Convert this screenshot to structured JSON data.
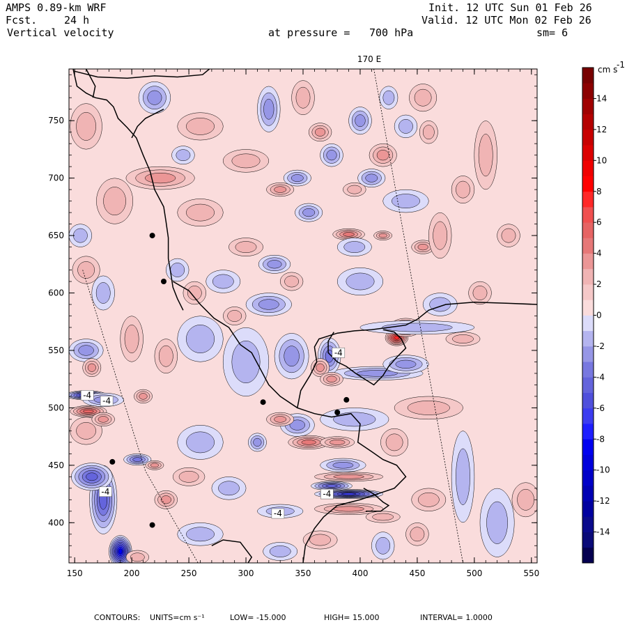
{
  "header": {
    "model": "AMPS 0.89-km WRF",
    "fcst_label": "Fcst.",
    "fcst_value": "24 h",
    "field": "Vertical velocity",
    "init": "Init. 12 UTC Sun 01 Feb 26",
    "valid": "Valid. 12 UTC Mon 02 Feb 26",
    "pressure_label": "at pressure =",
    "pressure_value": "700 hPa",
    "smooth": "sm= 6"
  },
  "footer": {
    "contours_label": "CONTOURS:",
    "units": "UNITS=cm s⁻¹",
    "low": "LOW= -15.000",
    "high": "HIGH= 15.000",
    "interval": "INTERVAL= 1.0000"
  },
  "chart_data": {
    "type": "heatmap",
    "title": "Vertical velocity at pressure = 700 hPa",
    "meridian_label": "170 E",
    "xlim": [
      145,
      555
    ],
    "ylim": [
      365,
      795
    ],
    "x_ticks": [
      "150",
      "200",
      "250",
      "300",
      "350",
      "400",
      "450",
      "500",
      "550"
    ],
    "y_ticks": [
      "400",
      "450",
      "500",
      "550",
      "600",
      "650",
      "700",
      "750"
    ],
    "colorbar": {
      "unit": "cm s",
      "unit_exp": "-1",
      "min": -16,
      "max": 16,
      "ticks": [
        "14",
        "12",
        "10",
        "8",
        "6",
        "4",
        "2",
        "0",
        "-2",
        "-4",
        "-6",
        "-8",
        "-10",
        "-12",
        "-14"
      ],
      "levels": [
        {
          "value": -16,
          "color": "#050050"
        },
        {
          "value": -15,
          "color": "#0a0a78"
        },
        {
          "value": -14,
          "color": "#0a0a8c"
        },
        {
          "value": -13,
          "color": "#0000a0"
        },
        {
          "value": -12,
          "color": "#0000b4"
        },
        {
          "value": -11,
          "color": "#0000c8"
        },
        {
          "value": -10,
          "color": "#0000dc"
        },
        {
          "value": -9,
          "color": "#0000f0"
        },
        {
          "value": -8,
          "color": "#1e1eff"
        },
        {
          "value": -7,
          "color": "#3c3cf0"
        },
        {
          "value": -6,
          "color": "#5050dc"
        },
        {
          "value": -5,
          "color": "#6464dc"
        },
        {
          "value": -4,
          "color": "#7878e0"
        },
        {
          "value": -3,
          "color": "#9696e6"
        },
        {
          "value": -2,
          "color": "#b4b4ef"
        },
        {
          "value": -1,
          "color": "#dcdcfa"
        },
        {
          "value": 0,
          "color": "#fadcdc"
        },
        {
          "value": 1,
          "color": "#f5c8c8"
        },
        {
          "value": 2,
          "color": "#f0b4b4"
        },
        {
          "value": 3,
          "color": "#eb9696"
        },
        {
          "value": 4,
          "color": "#e67878"
        },
        {
          "value": 5,
          "color": "#e66464"
        },
        {
          "value": 6,
          "color": "#f05050"
        },
        {
          "value": 7,
          "color": "#ff2828"
        },
        {
          "value": 8,
          "color": "#ff0000"
        },
        {
          "value": 9,
          "color": "#f00000"
        },
        {
          "value": 10,
          "color": "#dc0000"
        },
        {
          "value": 11,
          "color": "#c80000"
        },
        {
          "value": 12,
          "color": "#b40000"
        },
        {
          "value": 13,
          "color": "#a00000"
        },
        {
          "value": 14,
          "color": "#8c0000"
        },
        {
          "value": 15,
          "color": "#780000"
        }
      ]
    },
    "annotations": [
      {
        "text": "-4",
        "x": 381,
        "y": 548
      },
      {
        "text": "-4",
        "x": 161,
        "y": 511
      },
      {
        "text": "-4",
        "x": 178,
        "y": 506
      },
      {
        "text": "-4",
        "x": 177,
        "y": 427
      },
      {
        "text": "-4",
        "x": 371,
        "y": 425
      },
      {
        "text": "-4",
        "x": 328,
        "y": 408
      }
    ],
    "dots": [
      {
        "x": 218,
        "y": 650
      },
      {
        "x": 228,
        "y": 610
      },
      {
        "x": 315,
        "y": 505
      },
      {
        "x": 388,
        "y": 507
      },
      {
        "x": 380,
        "y": 496
      },
      {
        "x": 183,
        "y": 453
      },
      {
        "x": 218,
        "y": 398
      }
    ],
    "features": [
      {
        "w": 7,
        "x": 432,
        "y": 561,
        "sx": 10,
        "sy": 7
      },
      {
        "w": 5,
        "x": 440,
        "y": 570,
        "sx": 14,
        "sy": 8
      },
      {
        "w": 4,
        "x": 390,
        "y": 651,
        "sx": 14,
        "sy": 5
      },
      {
        "w": 3,
        "x": 397,
        "y": 642,
        "sx": 8,
        "sy": 4
      },
      {
        "w": 3,
        "x": 420,
        "y": 650,
        "sx": 8,
        "sy": 4
      },
      {
        "w": 3,
        "x": 455,
        "y": 640,
        "sx": 10,
        "sy": 6
      },
      {
        "w": -3,
        "x": 345,
        "y": 700,
        "sx": 12,
        "sy": 7
      },
      {
        "w": 3,
        "x": 330,
        "y": 690,
        "sx": 12,
        "sy": 6
      },
      {
        "w": -3,
        "x": 375,
        "y": 720,
        "sx": 10,
        "sy": 10
      },
      {
        "w": 3,
        "x": 365,
        "y": 740,
        "sx": 10,
        "sy": 8
      },
      {
        "w": -3,
        "x": 400,
        "y": 750,
        "sx": 10,
        "sy": 12
      },
      {
        "w": 3,
        "x": 420,
        "y": 720,
        "sx": 12,
        "sy": 10
      },
      {
        "w": -2,
        "x": 440,
        "y": 745,
        "sx": 10,
        "sy": 10
      },
      {
        "w": 2,
        "x": 460,
        "y": 740,
        "sx": 8,
        "sy": 10
      },
      {
        "w": -3,
        "x": 410,
        "y": 700,
        "sx": 12,
        "sy": 8
      },
      {
        "w": 2,
        "x": 395,
        "y": 690,
        "sx": 10,
        "sy": 6
      },
      {
        "w": -3,
        "x": 355,
        "y": 670,
        "sx": 12,
        "sy": 8
      },
      {
        "w": -3,
        "x": 220,
        "y": 770,
        "sx": 14,
        "sy": 14
      },
      {
        "w": 2,
        "x": 260,
        "y": 745,
        "sx": 20,
        "sy": 12
      },
      {
        "w": 3,
        "x": 225,
        "y": 700,
        "sx": 30,
        "sy": 10
      },
      {
        "w": 2,
        "x": 300,
        "y": 715,
        "sx": 20,
        "sy": 10
      },
      {
        "w": -3,
        "x": 320,
        "y": 760,
        "sx": 10,
        "sy": 20
      },
      {
        "w": 2,
        "x": 160,
        "y": 745,
        "sx": 14,
        "sy": 20
      },
      {
        "w": 2,
        "x": 185,
        "y": 680,
        "sx": 16,
        "sy": 20
      },
      {
        "w": 2,
        "x": 260,
        "y": 670,
        "sx": 20,
        "sy": 12
      },
      {
        "w": -3,
        "x": 325,
        "y": 625,
        "sx": 14,
        "sy": 8
      },
      {
        "w": -2,
        "x": 400,
        "y": 610,
        "sx": 20,
        "sy": 12
      },
      {
        "w": -2,
        "x": 450,
        "y": 570,
        "sx": 50,
        "sy": 6
      },
      {
        "w": -3,
        "x": 415,
        "y": 530,
        "sx": 40,
        "sy": 6
      },
      {
        "w": -3,
        "x": 440,
        "y": 538,
        "sx": 20,
        "sy": 8
      },
      {
        "w": -2,
        "x": 395,
        "y": 490,
        "sx": 30,
        "sy": 10
      },
      {
        "w": -4,
        "x": 373,
        "y": 545,
        "sx": 10,
        "sy": 16
      },
      {
        "w": 3,
        "x": 365,
        "y": 535,
        "sx": 8,
        "sy": 8
      },
      {
        "w": 3,
        "x": 375,
        "y": 525,
        "sx": 10,
        "sy": 6
      },
      {
        "w": -3,
        "x": 340,
        "y": 545,
        "sx": 15,
        "sy": 20
      },
      {
        "w": -3,
        "x": 320,
        "y": 590,
        "sx": 20,
        "sy": 10
      },
      {
        "w": -2,
        "x": 300,
        "y": 540,
        "sx": 20,
        "sy": 30
      },
      {
        "w": -2,
        "x": 260,
        "y": 560,
        "sx": 20,
        "sy": 20
      },
      {
        "w": 2,
        "x": 230,
        "y": 545,
        "sx": 10,
        "sy": 15
      },
      {
        "w": 2,
        "x": 200,
        "y": 560,
        "sx": 10,
        "sy": 20
      },
      {
        "w": -7,
        "x": 160,
        "y": 511,
        "sx": 18,
        "sy": 4
      },
      {
        "w": -3,
        "x": 175,
        "y": 507,
        "sx": 18,
        "sy": 6
      },
      {
        "w": 5,
        "x": 162,
        "y": 497,
        "sx": 16,
        "sy": 5
      },
      {
        "w": 2,
        "x": 160,
        "y": 480,
        "sx": 14,
        "sy": 12
      },
      {
        "w": -3,
        "x": 160,
        "y": 550,
        "sx": 15,
        "sy": 10
      },
      {
        "w": 3,
        "x": 165,
        "y": 535,
        "sx": 8,
        "sy": 8
      },
      {
        "w": -5,
        "x": 175,
        "y": 420,
        "sx": 12,
        "sy": 30
      },
      {
        "w": -9,
        "x": 190,
        "y": 375,
        "sx": 10,
        "sy": 14
      },
      {
        "w": -5,
        "x": 165,
        "y": 440,
        "sx": 18,
        "sy": 12
      },
      {
        "w": -4,
        "x": 205,
        "y": 455,
        "sx": 12,
        "sy": 5
      },
      {
        "w": 3,
        "x": 220,
        "y": 450,
        "sx": 8,
        "sy": 4
      },
      {
        "w": 2,
        "x": 205,
        "y": 370,
        "sx": 10,
        "sy": 6
      },
      {
        "w": 3,
        "x": 210,
        "y": 510,
        "sx": 8,
        "sy": 6
      },
      {
        "w": 3,
        "x": 175,
        "y": 490,
        "sx": 10,
        "sy": 6
      },
      {
        "w": -7,
        "x": 390,
        "y": 425,
        "sx": 30,
        "sy": 4
      },
      {
        "w": -5,
        "x": 375,
        "y": 432,
        "sx": 18,
        "sy": 4
      },
      {
        "w": 3,
        "x": 390,
        "y": 412,
        "sx": 30,
        "sy": 5
      },
      {
        "w": 3,
        "x": 390,
        "y": 440,
        "sx": 30,
        "sy": 4
      },
      {
        "w": -3,
        "x": 385,
        "y": 450,
        "sx": 20,
        "sy": 6
      },
      {
        "w": -2,
        "x": 330,
        "y": 410,
        "sx": 20,
        "sy": 6
      },
      {
        "w": 2,
        "x": 420,
        "y": 405,
        "sx": 15,
        "sy": 5
      },
      {
        "w": -2,
        "x": 285,
        "y": 430,
        "sx": 15,
        "sy": 10
      },
      {
        "w": -2,
        "x": 260,
        "y": 470,
        "sx": 20,
        "sy": 15
      },
      {
        "w": -3,
        "x": 345,
        "y": 485,
        "sx": 15,
        "sy": 10
      },
      {
        "w": 4,
        "x": 355,
        "y": 470,
        "sx": 18,
        "sy": 6
      },
      {
        "w": 3,
        "x": 380,
        "y": 470,
        "sx": 15,
        "sy": 5
      },
      {
        "w": 3,
        "x": 330,
        "y": 490,
        "sx": 12,
        "sy": 6
      },
      {
        "w": -3,
        "x": 310,
        "y": 470,
        "sx": 8,
        "sy": 8
      },
      {
        "w": 3,
        "x": 230,
        "y": 420,
        "sx": 10,
        "sy": 8
      },
      {
        "w": -2,
        "x": 260,
        "y": 390,
        "sx": 20,
        "sy": 10
      },
      {
        "w": -2,
        "x": 330,
        "y": 375,
        "sx": 15,
        "sy": 8
      },
      {
        "w": 2,
        "x": 365,
        "y": 385,
        "sx": 15,
        "sy": 8
      },
      {
        "w": 2,
        "x": 250,
        "y": 440,
        "sx": 14,
        "sy": 8
      },
      {
        "w": -2,
        "x": 490,
        "y": 440,
        "sx": 10,
        "sy": 40
      },
      {
        "w": -2,
        "x": 520,
        "y": 400,
        "sx": 15,
        "sy": 30
      },
      {
        "w": -2,
        "x": 420,
        "y": 380,
        "sx": 10,
        "sy": 12
      },
      {
        "w": 2,
        "x": 460,
        "y": 420,
        "sx": 15,
        "sy": 10
      },
      {
        "w": 2,
        "x": 450,
        "y": 390,
        "sx": 10,
        "sy": 10
      },
      {
        "w": 2,
        "x": 430,
        "y": 470,
        "sx": 12,
        "sy": 12
      },
      {
        "w": 2,
        "x": 460,
        "y": 500,
        "sx": 30,
        "sy": 10
      },
      {
        "w": 2,
        "x": 490,
        "y": 560,
        "sx": 15,
        "sy": 6
      },
      {
        "w": 2,
        "x": 470,
        "y": 650,
        "sx": 10,
        "sy": 20
      },
      {
        "w": 2,
        "x": 510,
        "y": 720,
        "sx": 10,
        "sy": 30
      },
      {
        "w": 2,
        "x": 490,
        "y": 690,
        "sx": 10,
        "sy": 12
      },
      {
        "w": -2,
        "x": 470,
        "y": 590,
        "sx": 15,
        "sy": 10
      },
      {
        "w": 2,
        "x": 530,
        "y": 650,
        "sx": 10,
        "sy": 10
      },
      {
        "w": 2,
        "x": 505,
        "y": 600,
        "sx": 10,
        "sy": 10
      },
      {
        "w": -2,
        "x": 440,
        "y": 680,
        "sx": 20,
        "sy": 10
      },
      {
        "w": 2,
        "x": 300,
        "y": 640,
        "sx": 15,
        "sy": 8
      },
      {
        "w": -2,
        "x": 280,
        "y": 610,
        "sx": 15,
        "sy": 10
      },
      {
        "w": -2,
        "x": 395,
        "y": 640,
        "sx": 15,
        "sy": 8
      },
      {
        "w": 2,
        "x": 255,
        "y": 600,
        "sx": 10,
        "sy": 10
      },
      {
        "w": -2,
        "x": 240,
        "y": 620,
        "sx": 10,
        "sy": 10
      },
      {
        "w": 2,
        "x": 160,
        "y": 620,
        "sx": 12,
        "sy": 12
      },
      {
        "w": -2,
        "x": 175,
        "y": 600,
        "sx": 10,
        "sy": 15
      },
      {
        "w": -2,
        "x": 155,
        "y": 650,
        "sx": 10,
        "sy": 10
      },
      {
        "w": 2,
        "x": 340,
        "y": 610,
        "sx": 10,
        "sy": 8
      },
      {
        "w": 2,
        "x": 290,
        "y": 580,
        "sx": 10,
        "sy": 8
      },
      {
        "w": -2,
        "x": 245,
        "y": 720,
        "sx": 10,
        "sy": 8
      },
      {
        "w": 2,
        "x": 350,
        "y": 770,
        "sx": 10,
        "sy": 15
      },
      {
        "w": 2,
        "x": 455,
        "y": 770,
        "sx": 12,
        "sy": 12
      },
      {
        "w": -2,
        "x": 425,
        "y": 770,
        "sx": 8,
        "sy": 10
      },
      {
        "w": 2,
        "x": 545,
        "y": 420,
        "sx": 12,
        "sy": 15
      }
    ]
  }
}
